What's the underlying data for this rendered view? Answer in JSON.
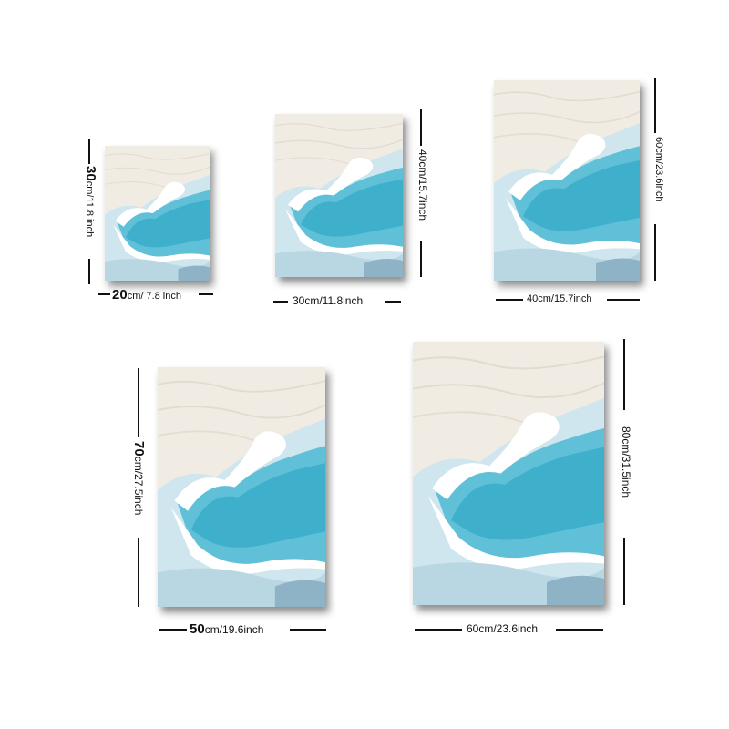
{
  "panels": [
    {
      "width_label_main": "20",
      "width_label_rest": "cm/ 7.8 inch",
      "height_label_main": "30",
      "height_label_rest": "cm/11.8 inch"
    },
    {
      "width_label": "30cm/11.8inch",
      "height_label": "40cm/15.7inch"
    },
    {
      "width_label": "40cm/15.7inch",
      "height_label": "60cm/23.6inch"
    },
    {
      "width_label_main": "50",
      "width_label_rest": "cm/19.6inch",
      "height_label_main": "70",
      "height_label_rest": "cm/27.5inch"
    },
    {
      "width_label": "60cm/23.6inch",
      "height_label": "80cm/31.5inch"
    }
  ],
  "colors": {
    "cream": "#f2ede4",
    "wave_blue": "#4fb8d2",
    "light_blue": "#bfe0ea",
    "line": "#111111"
  }
}
